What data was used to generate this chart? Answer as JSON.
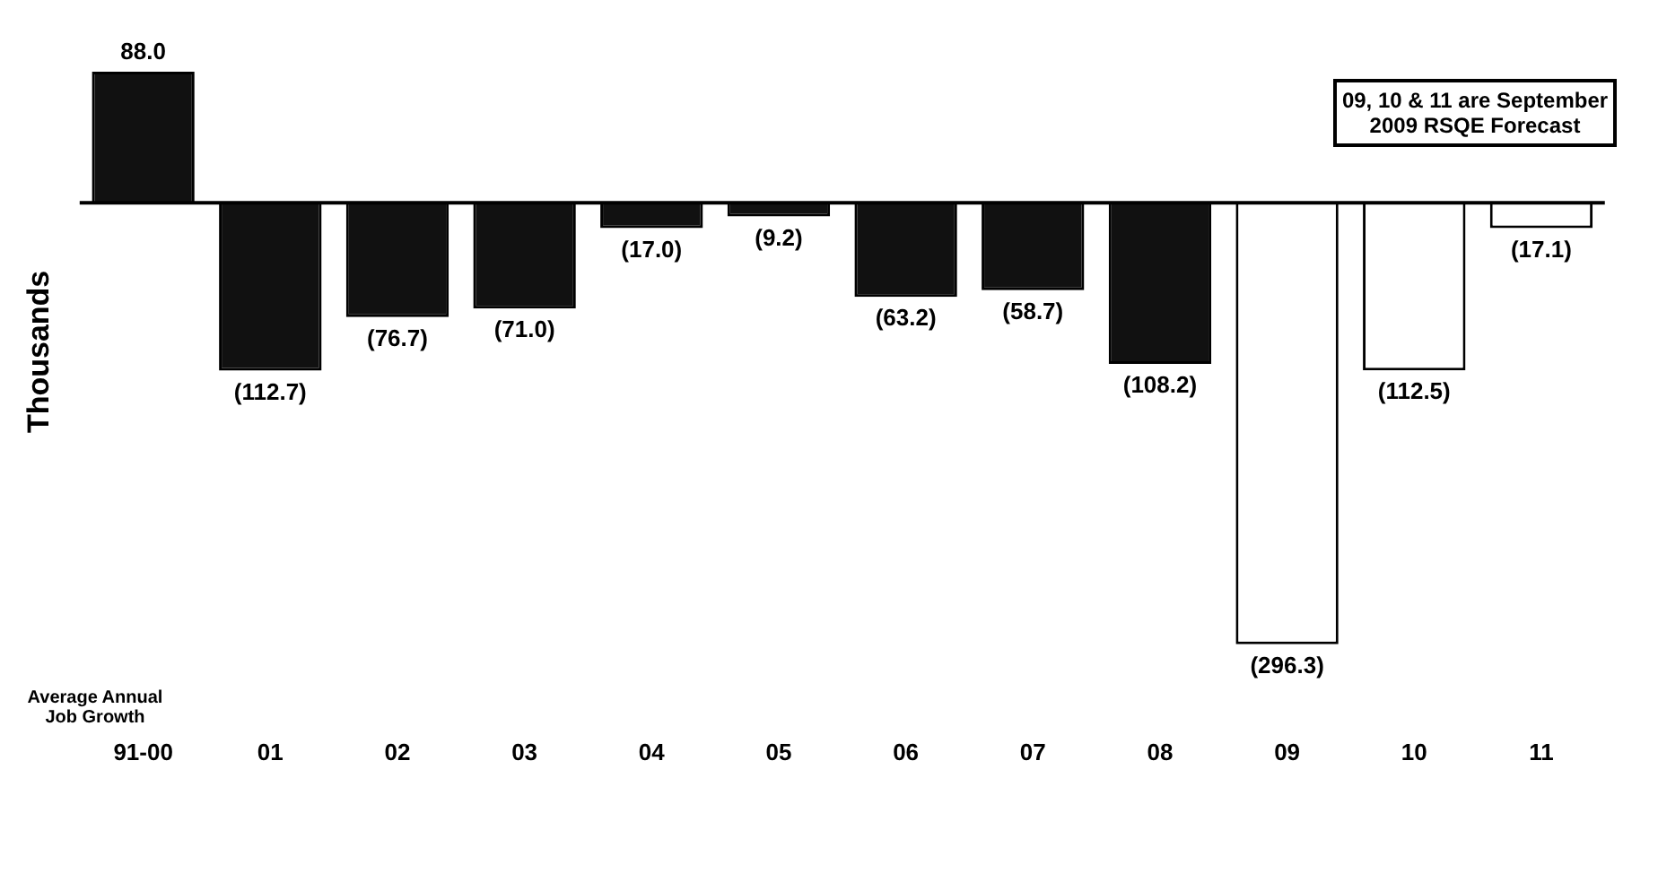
{
  "chart_data": {
    "type": "bar",
    "ylabel": "Thousands",
    "categories": [
      "91-00",
      "01",
      "02",
      "03",
      "04",
      "05",
      "06",
      "07",
      "08",
      "09",
      "10",
      "11"
    ],
    "values": [
      88.0,
      -112.7,
      -76.7,
      -71.0,
      -17.0,
      -9.2,
      -63.2,
      -58.7,
      -108.2,
      -296.3,
      -112.5,
      -17.1
    ],
    "colors": [
      "#111111",
      "#111111",
      "#111111",
      "#111111",
      "#111111",
      "#111111",
      "#111111",
      "#111111",
      "#111111",
      "#ffffff",
      "#ffffff",
      "#ffffff"
    ],
    "value_labels": [
      "88.0",
      "(112.7)",
      "(76.7)",
      "(71.0)",
      "(17.0)",
      "(9.2)",
      "(63.2)",
      "(58.7)",
      "(108.2)",
      "(296.3)",
      "(112.5)",
      "(17.1)"
    ],
    "annotations": [
      "09, 10 & 11 are September 2009 RSQE Forecast",
      "Average Annual Job Growth"
    ],
    "grid": false,
    "legend": false
  }
}
